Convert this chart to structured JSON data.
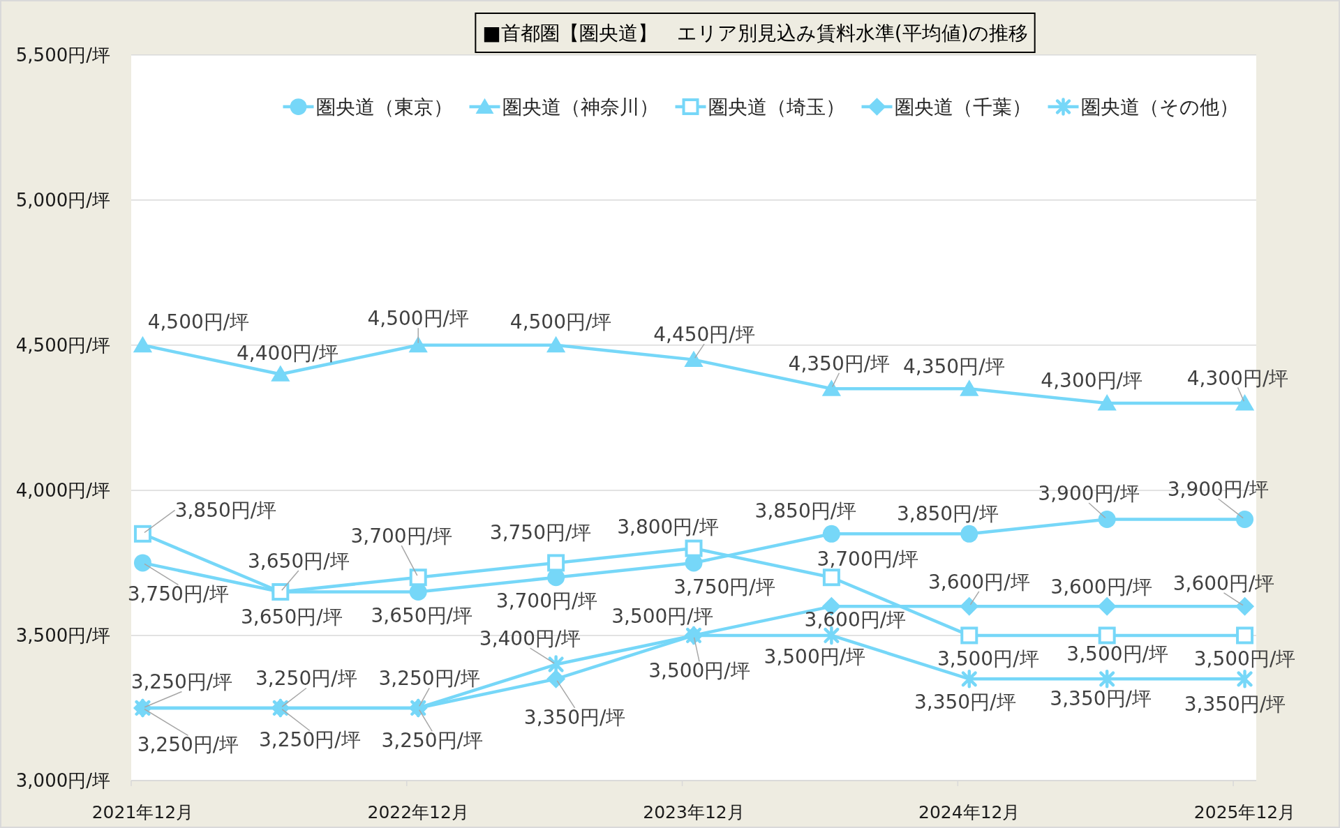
{
  "chart_data": {
    "type": "line",
    "title": "■首都圏【圏央道】　エリア別見込み賃料水準(平均値)の推移",
    "categories": [
      "2021年12月",
      null,
      "2022年12月",
      null,
      "2023年12月",
      null,
      "2024年12月",
      null,
      "2025年12月"
    ],
    "ylim": [
      3000,
      5500
    ],
    "yticks": [
      {
        "value": 3000,
        "label": "3,000円/坪"
      },
      {
        "value": 3500,
        "label": "3,500円/坪"
      },
      {
        "value": 4000,
        "label": "4,000円/坪"
      },
      {
        "value": 4500,
        "label": "4,500円/坪"
      },
      {
        "value": 5000,
        "label": "5,000円/坪"
      },
      {
        "value": 5500,
        "label": "5,500円/坪"
      }
    ],
    "grid": "y",
    "legend": "top",
    "line_style": "solid",
    "series": [
      {
        "name": "圏央道（東京）",
        "color": "#76d7f8",
        "marker": "circle",
        "values": [
          3750,
          3650,
          3650,
          3700,
          3750,
          3850,
          3850,
          3900,
          3900
        ],
        "value_labels": [
          "3,750円/坪",
          "3,650円/坪",
          "3,650円/坪",
          "3,700円/坪",
          "3,750円/坪",
          "3,850円/坪",
          "3,850円/坪",
          "3,900円/坪",
          "3,900円/坪"
        ]
      },
      {
        "name": "圏央道（神奈川）",
        "color": "#76d7f8",
        "marker": "triangle",
        "values": [
          4500,
          4400,
          4500,
          4500,
          4450,
          4350,
          4350,
          4300,
          4300
        ],
        "value_labels": [
          "4,500円/坪",
          "4,400円/坪",
          "4,500円/坪",
          "4,500円/坪",
          "4,450円/坪",
          "4,350円/坪",
          "4,350円/坪",
          "4,300円/坪",
          "4,300円/坪"
        ]
      },
      {
        "name": "圏央道（埼玉）",
        "color": "#76d7f8",
        "marker": "square",
        "values": [
          3850,
          3650,
          3700,
          3750,
          3800,
          3700,
          3500,
          3500,
          3500
        ],
        "value_labels": [
          "3,850円/坪",
          "3,650円/坪",
          "3,700円/坪",
          "3,750円/坪",
          "3,800円/坪",
          "3,700円/坪",
          "3,500円/坪",
          "3,500円/坪",
          "3,500円/坪"
        ]
      },
      {
        "name": "圏央道（千葉）",
        "color": "#76d7f8",
        "marker": "diamond",
        "values": [
          3250,
          3250,
          3250,
          3350,
          3500,
          3600,
          3600,
          3600,
          3600
        ],
        "value_labels": [
          "3,250円/坪",
          "3,250円/坪",
          "3,250円/坪",
          "3,350円/坪",
          "3,500円/坪",
          "3,600円/坪",
          "3,600円/坪",
          "3,600円/坪",
          "3,600円/坪"
        ]
      },
      {
        "name": "圏央道（その他）",
        "color": "#76d7f8",
        "marker": "cross",
        "values": [
          3250,
          3250,
          3250,
          3400,
          3500,
          3500,
          3350,
          3350,
          3350
        ],
        "value_labels": [
          "3,250円/坪",
          "3,250円/坪",
          "3,250円/坪",
          "3,400円/坪",
          "3,500円/坪",
          "3,500円/坪",
          "3,350円/坪",
          "3,350円/坪",
          "3,350円/坪"
        ]
      }
    ]
  }
}
